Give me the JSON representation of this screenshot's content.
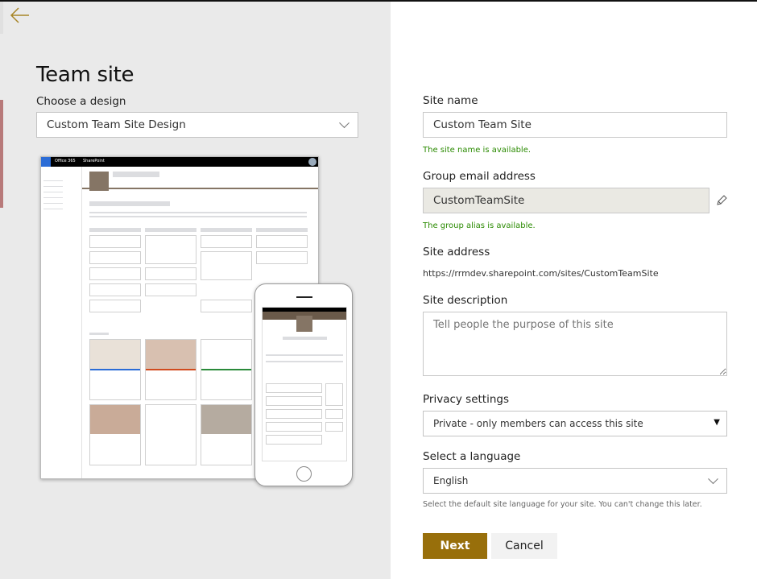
{
  "left_panel": {
    "title": "Team site",
    "design_label": "Choose a design",
    "design_value": "Custom Team Site Design",
    "preview": {
      "suite_bar_app": "Office 365",
      "suite_bar_product": "SharePoint"
    }
  },
  "form": {
    "site_name_label": "Site name",
    "site_name_value": "Custom Team Site",
    "site_name_status": "The site name is available.",
    "group_email_label": "Group email address",
    "group_email_value": "CustomTeamSite",
    "group_email_status": "The group alias is available.",
    "site_address_label": "Site address",
    "site_address_value": "https://rrmdev.sharepoint.com/sites/CustomTeamSite",
    "description_label": "Site description",
    "description_placeholder": "Tell people the purpose of this site",
    "privacy_label": "Privacy settings",
    "privacy_value": "Private - only members can access this site",
    "language_label": "Select a language",
    "language_value": "English",
    "language_hint": "Select the default site language for your site. You can't change this later.",
    "next_label": "Next",
    "cancel_label": "Cancel"
  },
  "colors": {
    "accent": "#986f0b",
    "success": "#2a8a00",
    "left_bg": "#eaeaea"
  }
}
